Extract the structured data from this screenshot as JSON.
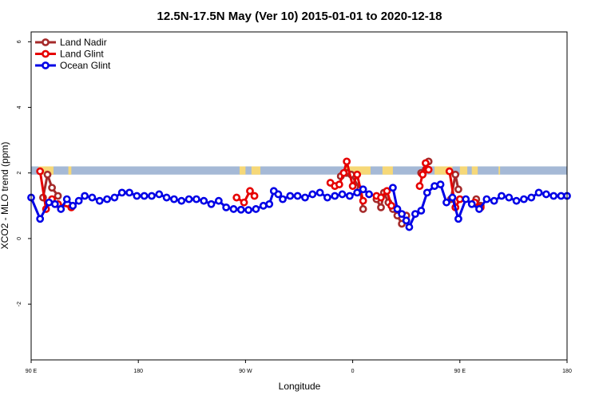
{
  "chart_data": {
    "type": "line",
    "title": "12.5N-17.5N May (Ver 10)   2015-01-01 to 2020-12-18",
    "xlabel": "Longitude",
    "ylabel": "XCO2 - MLO trend (ppm)",
    "xlim": [
      90,
      450
    ],
    "ylim": [
      -3.7,
      6.3
    ],
    "x_ticks": [
      {
        "value": 90,
        "label": "90 E"
      },
      {
        "value": 162,
        "label": "180"
      },
      {
        "value": 234,
        "label": "90 W"
      },
      {
        "value": 306,
        "label": "0"
      },
      {
        "value": 378,
        "label": "90 E"
      },
      {
        "value": 450,
        "label": "180"
      }
    ],
    "y_ticks": [
      {
        "value": -2,
        "label": "-2"
      },
      {
        "value": 0,
        "label": "0"
      },
      {
        "value": 2,
        "label": "2"
      },
      {
        "value": 4,
        "label": "4"
      },
      {
        "value": 6,
        "label": "6"
      }
    ],
    "grid": false,
    "legend_position": "top-left",
    "land_band": {
      "y_range": [
        1.95,
        2.2
      ],
      "ocean_color": "#a5b9d6",
      "land_color": "#f6d878",
      "land_x": [
        [
          95,
          105
        ],
        [
          115,
          117
        ],
        [
          230,
          234
        ],
        [
          238,
          244
        ],
        [
          301,
          318
        ],
        [
          326,
          333
        ],
        [
          361,
          373
        ],
        [
          378,
          383
        ],
        [
          386,
          390
        ],
        [
          404,
          405
        ]
      ]
    },
    "series": [
      {
        "name": "Land Nadir",
        "color": "#a52a2a",
        "segments": [
          [
            [
              98,
              1.25
            ],
            [
              101,
              1.95
            ],
            [
              104,
              1.55
            ],
            [
              108,
              1.3
            ]
          ],
          [
            [
              298,
              1.9
            ],
            [
              302,
              2.0
            ],
            [
              305,
              1.95
            ],
            [
              311,
              1.5
            ],
            [
              313,
              0.9
            ]
          ],
          [
            [
              322,
              1.2
            ],
            [
              325,
              0.95
            ],
            [
              327,
              1.4
            ],
            [
              330,
              1.1
            ],
            [
              333,
              0.9
            ],
            [
              336,
              0.7
            ],
            [
              339,
              0.45
            ],
            [
              342,
              0.7
            ]
          ],
          [
            [
              352,
              2.0
            ],
            [
              355,
              2.1
            ],
            [
              357,
              2.35
            ]
          ],
          [
            [
              372,
              1.2
            ],
            [
              375,
              1.95
            ],
            [
              377,
              1.5
            ]
          ],
          [
            [
              389,
              1.2
            ],
            [
              392,
              1.0
            ]
          ]
        ]
      },
      {
        "name": "Land Glint",
        "color": "#e60000",
        "segments": [
          [
            [
              96,
              2.05
            ],
            [
              100,
              0.9
            ],
            [
              104,
              1.2
            ],
            [
              108,
              1.05
            ],
            [
              117,
              0.95
            ]
          ],
          [
            [
              228,
              1.25
            ],
            [
              233,
              1.1
            ],
            [
              237,
              1.45
            ],
            [
              240,
              1.3
            ]
          ],
          [
            [
              291,
              1.7
            ],
            [
              294,
              1.6
            ],
            [
              297,
              1.65
            ],
            [
              300,
              2.0
            ],
            [
              302,
              2.35
            ],
            [
              306,
              1.6
            ],
            [
              309,
              1.95
            ],
            [
              313,
              1.15
            ]
          ],
          [
            [
              322,
              1.3
            ],
            [
              325,
              1.25
            ],
            [
              329,
              1.45
            ],
            [
              332,
              1.0
            ]
          ],
          [
            [
              351,
              1.6
            ],
            [
              353,
              1.95
            ],
            [
              355,
              2.3
            ],
            [
              357,
              2.1
            ]
          ],
          [
            [
              371,
              2.05
            ],
            [
              375,
              0.95
            ],
            [
              378,
              1.2
            ]
          ],
          [
            [
              388,
              1.1
            ],
            [
              392,
              0.95
            ]
          ]
        ]
      },
      {
        "name": "Ocean Glint",
        "color": "#0000e6",
        "segments": [
          [
            [
              90,
              1.25
            ],
            [
              96,
              0.6
            ],
            [
              102,
              1.1
            ],
            [
              106,
              1.05
            ],
            [
              110,
              0.9
            ],
            [
              114,
              1.2
            ],
            [
              118,
              1.0
            ],
            [
              122,
              1.15
            ],
            [
              126,
              1.3
            ],
            [
              131,
              1.25
            ],
            [
              136,
              1.15
            ],
            [
              141,
              1.2
            ],
            [
              146,
              1.25
            ],
            [
              151,
              1.4
            ],
            [
              156,
              1.4
            ],
            [
              161,
              1.3
            ],
            [
              166,
              1.3
            ],
            [
              171,
              1.3
            ],
            [
              176,
              1.35
            ],
            [
              181,
              1.25
            ],
            [
              186,
              1.2
            ],
            [
              191,
              1.15
            ],
            [
              196,
              1.2
            ],
            [
              201,
              1.2
            ],
            [
              206,
              1.15
            ],
            [
              211,
              1.05
            ],
            [
              216,
              1.15
            ],
            [
              221,
              0.95
            ],
            [
              226,
              0.9
            ],
            [
              231,
              0.88
            ],
            [
              236,
              0.87
            ],
            [
              241,
              0.9
            ],
            [
              246,
              1.0
            ],
            [
              250,
              1.05
            ],
            [
              253,
              1.45
            ],
            [
              256,
              1.35
            ],
            [
              259,
              1.2
            ],
            [
              264,
              1.3
            ],
            [
              269,
              1.3
            ],
            [
              274,
              1.25
            ],
            [
              279,
              1.35
            ],
            [
              284,
              1.4
            ],
            [
              289,
              1.25
            ],
            [
              294,
              1.3
            ],
            [
              299,
              1.35
            ],
            [
              304,
              1.3
            ],
            [
              309,
              1.4
            ],
            [
              313,
              1.5
            ],
            [
              317,
              1.35
            ]
          ],
          [
            [
              333,
              1.55
            ],
            [
              336,
              0.9
            ],
            [
              339,
              0.75
            ],
            [
              342,
              0.55
            ],
            [
              344,
              0.35
            ],
            [
              348,
              0.75
            ],
            [
              352,
              0.85
            ],
            [
              356,
              1.4
            ],
            [
              361,
              1.6
            ],
            [
              365,
              1.65
            ],
            [
              369,
              1.1
            ],
            [
              373,
              1.25
            ],
            [
              377,
              0.6
            ],
            [
              382,
              1.2
            ],
            [
              386,
              1.05
            ],
            [
              391,
              0.9
            ],
            [
              396,
              1.2
            ],
            [
              401,
              1.15
            ],
            [
              406,
              1.3
            ],
            [
              411,
              1.25
            ],
            [
              416,
              1.15
            ],
            [
              421,
              1.2
            ],
            [
              426,
              1.25
            ],
            [
              431,
              1.4
            ],
            [
              436,
              1.35
            ],
            [
              441,
              1.3
            ],
            [
              446,
              1.3
            ],
            [
              450,
              1.3
            ]
          ]
        ]
      }
    ]
  }
}
